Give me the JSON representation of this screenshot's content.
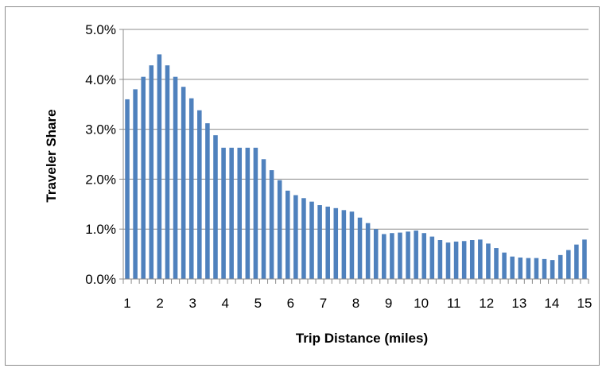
{
  "chart_data": {
    "type": "bar",
    "xlabel": "Trip Distance (miles)",
    "ylabel": "Traveler Share",
    "ylim": [
      0,
      0.05
    ],
    "y_ticks": [
      "0.0%",
      "1.0%",
      "2.0%",
      "3.0%",
      "4.0%",
      "5.0%"
    ],
    "x_ticks": [
      "1",
      "2",
      "3",
      "4",
      "5",
      "6",
      "7",
      "8",
      "9",
      "10",
      "11",
      "12",
      "13",
      "14",
      "15"
    ],
    "x_range": [
      1,
      15
    ],
    "grid": true,
    "bar_color": "#4f81bd",
    "series": [
      {
        "values": [
          0.036,
          0.038,
          0.0405,
          0.0428,
          0.045,
          0.0428,
          0.0405,
          0.0385,
          0.0362,
          0.0338,
          0.0312,
          0.0288,
          0.0263,
          0.0263,
          0.0263,
          0.0263,
          0.0263,
          0.024,
          0.0218,
          0.0198,
          0.0177,
          0.0168,
          0.0162,
          0.0155,
          0.0148,
          0.0145,
          0.0142,
          0.0138,
          0.0135,
          0.0123,
          0.0112,
          0.01,
          0.009,
          0.0092,
          0.0093,
          0.0095,
          0.0097,
          0.0092,
          0.0085,
          0.0078,
          0.0073,
          0.0075,
          0.0076,
          0.0078,
          0.0079,
          0.0071,
          0.0062,
          0.0053,
          0.0045,
          0.0043,
          0.0042,
          0.0042,
          0.004,
          0.0038,
          0.0048,
          0.0058,
          0.0069,
          0.0079
        ]
      }
    ]
  }
}
